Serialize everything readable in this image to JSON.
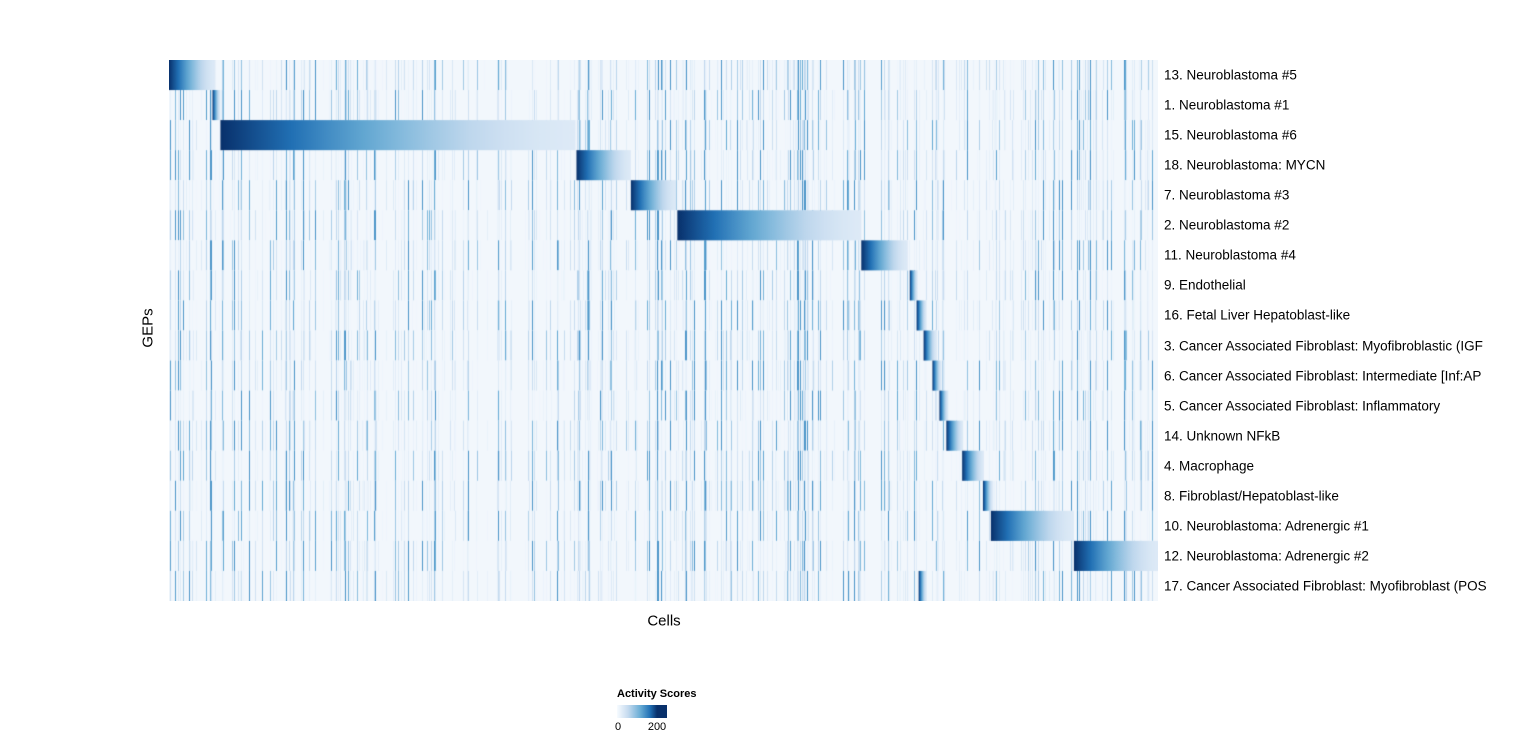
{
  "chart_data": {
    "type": "heatmap",
    "title": "",
    "xlabel": "Cells",
    "ylabel": "GEPs",
    "colormap": "Blues",
    "color_min": "#f7fbff",
    "color_max": "#08306b",
    "colorbar": {
      "title": "Activity Scores",
      "tick_labels": [
        "0",
        "200"
      ],
      "range": [
        0,
        200
      ]
    },
    "layout": {
      "legend_position": "bottom-left",
      "grid": false,
      "row_label_side": "right"
    },
    "rows": [
      {
        "label": "13. Neuroblastoma #5",
        "block": [
          0.0,
          0.047
        ]
      },
      {
        "label": "1. Neuroblastoma #1",
        "block": [
          0.044,
          0.052
        ]
      },
      {
        "label": "15. Neuroblastoma #6",
        "block": [
          0.052,
          0.411
        ]
      },
      {
        "label": "18. Neuroblastoma: MYCN",
        "block": [
          0.412,
          0.467
        ]
      },
      {
        "label": "7. Neuroblastoma #3",
        "block": [
          0.467,
          0.513
        ]
      },
      {
        "label": "2. Neuroblastoma #2",
        "block": [
          0.514,
          0.7
        ]
      },
      {
        "label": "11. Neuroblastoma #4",
        "block": [
          0.7,
          0.747
        ]
      },
      {
        "label": "9. Endothelial",
        "block": [
          0.749,
          0.757
        ]
      },
      {
        "label": "16. Fetal Liver Hepatoblast-like",
        "block": [
          0.756,
          0.766
        ]
      },
      {
        "label": "3. Cancer Associated Fibroblast: Myofibroblastic (IGF",
        "block": [
          0.763,
          0.776
        ]
      },
      {
        "label": "6. Cancer Associated Fibroblast: Intermediate [Inf:AP",
        "block": [
          0.772,
          0.781
        ]
      },
      {
        "label": "5. Cancer Associated Fibroblast: Inflammatory",
        "block": [
          0.779,
          0.788
        ]
      },
      {
        "label": "14. Unknown NFkB",
        "block": [
          0.786,
          0.803
        ]
      },
      {
        "label": "4. Macrophage",
        "block": [
          0.802,
          0.824
        ]
      },
      {
        "label": "8. Fibroblast/Hepatoblast-like",
        "block": [
          0.823,
          0.833
        ]
      },
      {
        "label": "10. Neuroblastoma: Adrenergic #1",
        "block": [
          0.831,
          0.915
        ]
      },
      {
        "label": "12. Neuroblastoma: Adrenergic #2",
        "block": [
          0.915,
          1.0
        ]
      },
      {
        "label": "17. Cancer Associated Fibroblast: Myofibroblast (POS",
        "block": [
          0.758,
          0.766
        ]
      }
    ]
  }
}
